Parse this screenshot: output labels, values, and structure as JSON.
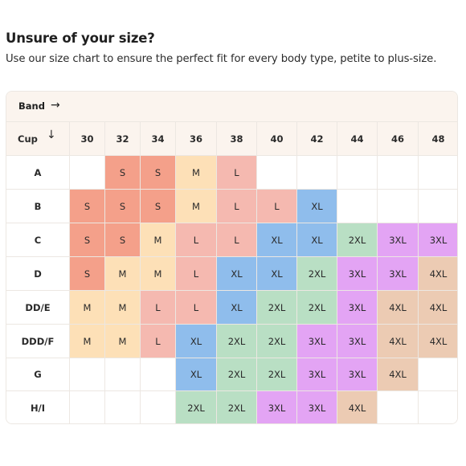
{
  "header": {
    "title": "Unsure of your size?",
    "subtitle": "Use our size chart to ensure the perfect fit for every body type, petite to plus-size."
  },
  "chart": {
    "band_label": "Band",
    "band_arrow": "→",
    "cup_label": "Cup",
    "cup_arrow": "↓",
    "bands": [
      "30",
      "32",
      "34",
      "36",
      "38",
      "40",
      "42",
      "44",
      "46",
      "48"
    ],
    "cups": [
      "A",
      "B",
      "C",
      "D",
      "DD/E",
      "DDD/F",
      "G",
      "H/I"
    ],
    "sizes": [
      [
        "",
        "S",
        "S",
        "M",
        "L",
        "",
        "",
        "",
        "",
        ""
      ],
      [
        "S",
        "S",
        "S",
        "M",
        "L",
        "L",
        "XL",
        "",
        "",
        ""
      ],
      [
        "S",
        "S",
        "M",
        "L",
        "L",
        "XL",
        "XL",
        "2XL",
        "3XL",
        "3XL"
      ],
      [
        "S",
        "M",
        "M",
        "L",
        "XL",
        "XL",
        "2XL",
        "3XL",
        "3XL",
        "4XL"
      ],
      [
        "M",
        "M",
        "L",
        "L",
        "XL",
        "2XL",
        "2XL",
        "3XL",
        "4XL",
        "4XL"
      ],
      [
        "M",
        "M",
        "L",
        "XL",
        "2XL",
        "2XL",
        "3XL",
        "3XL",
        "4XL",
        "4XL"
      ],
      [
        "",
        "",
        "",
        "XL",
        "2XL",
        "2XL",
        "3XL",
        "3XL",
        "4XL",
        ""
      ],
      [
        "",
        "",
        "",
        "2XL",
        "2XL",
        "3XL",
        "3XL",
        "4XL",
        "",
        ""
      ]
    ],
    "colors": {
      "S": "#f4a08a",
      "M": "#fde0b7",
      "L": "#f5b9b0",
      "XL": "#8fbdec",
      "2XL": "#b9dfc4",
      "3XL": "#e3a4f4",
      "4XL": "#eccbb3",
      "empty": "#ffffff",
      "header_bg": "#fbf4ee",
      "grid_line": "#ece7e2"
    }
  }
}
